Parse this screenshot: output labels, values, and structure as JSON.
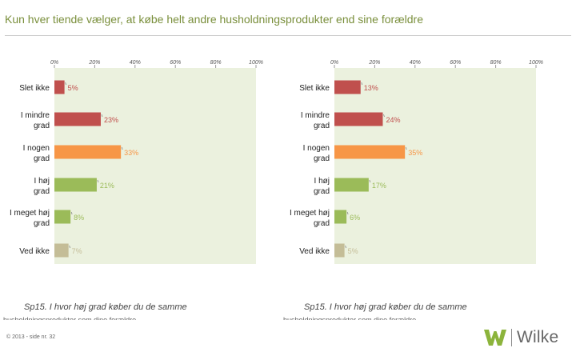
{
  "title": "Kun hver tiende vælger, at købe helt andre husholdningsprodukter end sine forældre",
  "chart_data": [
    {
      "type": "bar",
      "orientation": "horizontal",
      "categories": [
        "Slet ikke",
        "I mindre grad",
        "I nogen grad",
        "I høj grad",
        "I meget høj grad",
        "Ved ikke"
      ],
      "values": [
        5,
        23,
        33,
        21,
        8,
        7
      ],
      "value_suffix": "%",
      "bar_colors": [
        "#c0504d",
        "#c0504d",
        "#f79646",
        "#9bbb59",
        "#9bbb59",
        "#c4bd97"
      ],
      "xlim": [
        0,
        100
      ],
      "xticks": [
        "0%",
        "20%",
        "40%",
        "60%",
        "80%",
        "100%"
      ],
      "plot_background": "#ebf1de",
      "question": "Sp15. I hvor høj grad køber du de samme",
      "question_continued": "husholdningsprodukter som dine forældre"
    },
    {
      "type": "bar",
      "orientation": "horizontal",
      "categories": [
        "Slet ikke",
        "I mindre grad",
        "I nogen grad",
        "I høj grad",
        "I meget høj grad",
        "Ved ikke"
      ],
      "values": [
        13,
        24,
        35,
        17,
        6,
        5
      ],
      "value_suffix": "%",
      "bar_colors": [
        "#c0504d",
        "#c0504d",
        "#f79646",
        "#9bbb59",
        "#9bbb59",
        "#c4bd97"
      ],
      "xlim": [
        0,
        100
      ],
      "xticks": [
        "0%",
        "20%",
        "40%",
        "60%",
        "80%",
        "100%"
      ],
      "plot_background": "#ebf1de",
      "question": "Sp15. I hvor høj grad køber du de samme",
      "question_continued": "husholdningsprodukter som dine forældre"
    }
  ],
  "footer": "© 2013 - side nr. 32",
  "logo": {
    "text": "Wilke",
    "icon": "w-logo-icon",
    "color": "#8cb43c"
  }
}
